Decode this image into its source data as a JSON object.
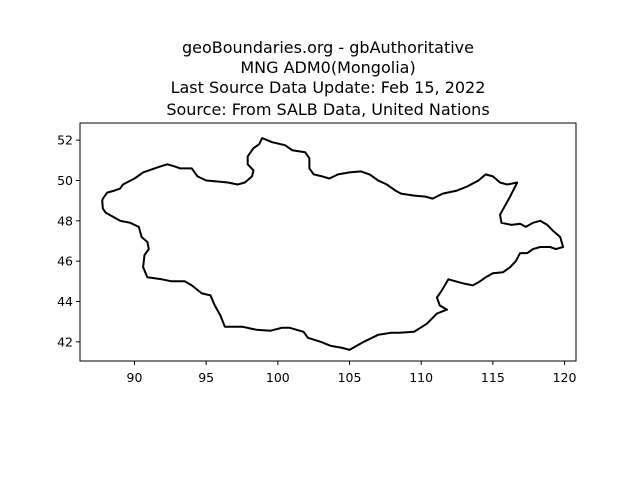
{
  "title": {
    "line1": "geoBoundaries.org - gbAuthoritative",
    "line2": "MNG ADM0(Mongolia)",
    "line3": "Last Source Data Update: Feb 15, 2022",
    "line4": "Source: From SALB Data, United Nations"
  },
  "colors": {
    "outline": "#000000",
    "background": "#ffffff"
  },
  "chart_data": {
    "type": "line",
    "xlim": [
      86.2,
      120.8
    ],
    "ylim": [
      41.05,
      52.85
    ],
    "x_ticks": [
      90,
      95,
      100,
      105,
      110,
      115,
      120
    ],
    "y_ticks": [
      42,
      44,
      46,
      48,
      50,
      52
    ],
    "grid": false,
    "boundary": [
      [
        87.8,
        49.1
      ],
      [
        88.1,
        49.4
      ],
      [
        88.6,
        49.5
      ],
      [
        89.0,
        49.6
      ],
      [
        89.2,
        49.8
      ],
      [
        90.0,
        50.1
      ],
      [
        90.6,
        50.4
      ],
      [
        91.4,
        50.6
      ],
      [
        91.8,
        50.7
      ],
      [
        92.3,
        50.8
      ],
      [
        92.8,
        50.7
      ],
      [
        93.2,
        50.6
      ],
      [
        94.0,
        50.6
      ],
      [
        94.4,
        50.2
      ],
      [
        95.0,
        50.0
      ],
      [
        95.8,
        49.95
      ],
      [
        96.5,
        49.9
      ],
      [
        97.2,
        49.8
      ],
      [
        97.7,
        49.9
      ],
      [
        98.2,
        50.2
      ],
      [
        98.3,
        50.5
      ],
      [
        97.9,
        50.8
      ],
      [
        97.9,
        51.2
      ],
      [
        98.3,
        51.6
      ],
      [
        98.7,
        51.8
      ],
      [
        98.9,
        52.1
      ],
      [
        99.6,
        51.9
      ],
      [
        100.5,
        51.75
      ],
      [
        101.0,
        51.5
      ],
      [
        101.9,
        51.4
      ],
      [
        102.2,
        51.1
      ],
      [
        102.2,
        50.6
      ],
      [
        102.5,
        50.3
      ],
      [
        103.1,
        50.2
      ],
      [
        103.6,
        50.1
      ],
      [
        104.2,
        50.3
      ],
      [
        105.0,
        50.4
      ],
      [
        105.8,
        50.45
      ],
      [
        106.4,
        50.3
      ],
      [
        107.0,
        50.0
      ],
      [
        107.6,
        49.8
      ],
      [
        108.2,
        49.5
      ],
      [
        108.6,
        49.35
      ],
      [
        109.5,
        49.25
      ],
      [
        110.3,
        49.2
      ],
      [
        110.8,
        49.1
      ],
      [
        111.5,
        49.35
      ],
      [
        112.5,
        49.5
      ],
      [
        113.2,
        49.7
      ],
      [
        114.0,
        50.0
      ],
      [
        114.5,
        50.3
      ],
      [
        115.0,
        50.2
      ],
      [
        115.5,
        49.9
      ],
      [
        116.0,
        49.8
      ],
      [
        116.7,
        49.9
      ],
      [
        116.2,
        49.2
      ],
      [
        115.5,
        48.3
      ],
      [
        115.6,
        47.9
      ],
      [
        116.3,
        47.8
      ],
      [
        116.9,
        47.85
      ],
      [
        117.3,
        47.7
      ],
      [
        117.8,
        47.9
      ],
      [
        118.3,
        48.0
      ],
      [
        118.8,
        47.8
      ],
      [
        119.2,
        47.5
      ],
      [
        119.7,
        47.2
      ],
      [
        119.9,
        46.7
      ],
      [
        119.4,
        46.6
      ],
      [
        119.0,
        46.7
      ],
      [
        118.3,
        46.7
      ],
      [
        117.8,
        46.6
      ],
      [
        117.4,
        46.4
      ],
      [
        116.9,
        46.4
      ],
      [
        116.6,
        46.0
      ],
      [
        116.2,
        45.7
      ],
      [
        115.7,
        45.45
      ],
      [
        115.0,
        45.4
      ],
      [
        114.5,
        45.2
      ],
      [
        114.0,
        44.95
      ],
      [
        113.6,
        44.8
      ],
      [
        112.9,
        44.9
      ],
      [
        112.4,
        45.0
      ],
      [
        111.9,
        45.1
      ],
      [
        111.4,
        44.5
      ],
      [
        111.1,
        44.2
      ],
      [
        111.3,
        43.8
      ],
      [
        111.8,
        43.6
      ],
      [
        111.1,
        43.4
      ],
      [
        110.4,
        42.9
      ],
      [
        109.5,
        42.5
      ],
      [
        108.5,
        42.45
      ],
      [
        107.9,
        42.45
      ],
      [
        107.0,
        42.35
      ],
      [
        106.0,
        42.0
      ],
      [
        105.0,
        41.6
      ],
      [
        104.5,
        41.7
      ],
      [
        103.7,
        41.8
      ],
      [
        103.0,
        42.0
      ],
      [
        102.1,
        42.2
      ],
      [
        101.8,
        42.5
      ],
      [
        100.8,
        42.7
      ],
      [
        100.3,
        42.7
      ],
      [
        99.5,
        42.55
      ],
      [
        98.5,
        42.6
      ],
      [
        97.5,
        42.75
      ],
      [
        96.3,
        42.75
      ],
      [
        96.0,
        43.3
      ],
      [
        95.6,
        43.8
      ],
      [
        95.3,
        44.3
      ],
      [
        94.7,
        44.4
      ],
      [
        94.0,
        44.8
      ],
      [
        93.5,
        45.0
      ],
      [
        92.6,
        45.0
      ],
      [
        91.9,
        45.1
      ],
      [
        90.9,
        45.2
      ],
      [
        90.6,
        45.7
      ],
      [
        90.7,
        46.3
      ],
      [
        91.0,
        46.6
      ],
      [
        90.9,
        46.95
      ],
      [
        90.5,
        47.2
      ],
      [
        90.3,
        47.7
      ],
      [
        89.7,
        47.9
      ],
      [
        89.0,
        48.0
      ],
      [
        88.5,
        48.2
      ],
      [
        88.0,
        48.4
      ],
      [
        87.8,
        48.6
      ],
      [
        87.75,
        49.0
      ],
      [
        87.8,
        49.1
      ]
    ]
  }
}
